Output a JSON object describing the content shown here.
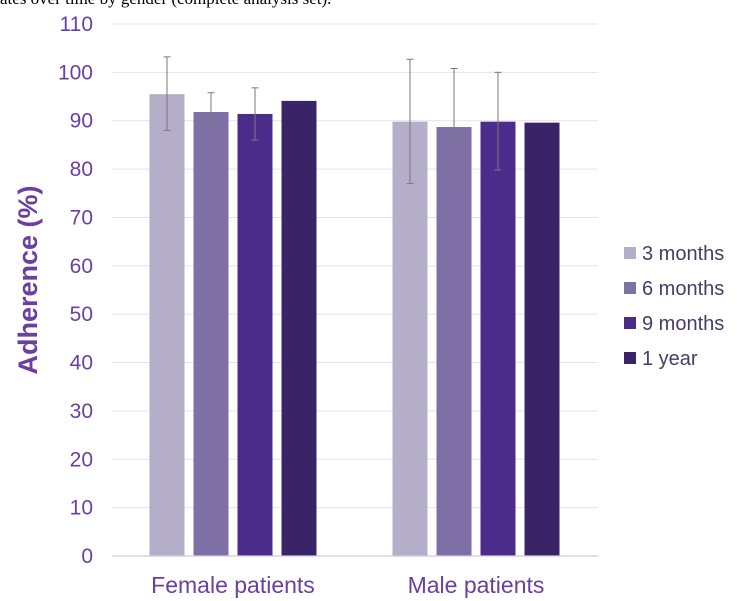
{
  "caption": "ates over time by gender (complete analysis set).",
  "colors": {
    "axis_text": "#6b3fa0",
    "gridline": "#e4e1ee",
    "error_bar": "#7a7a7a",
    "series": [
      "#b4aec9",
      "#7e70a7",
      "#4c2c8a",
      "#3a2468"
    ]
  },
  "chart_data": {
    "type": "bar",
    "title": "",
    "xlabel": "",
    "ylabel": "Adherence (%)",
    "ylim": [
      0,
      110
    ],
    "yticks": [
      0,
      10,
      20,
      30,
      40,
      50,
      60,
      70,
      80,
      90,
      100,
      110
    ],
    "grid": true,
    "legend_position": "right",
    "categories": [
      "Female patients",
      "Male patients"
    ],
    "series": [
      {
        "name": "3 months",
        "values": [
          95.5,
          89.8
        ],
        "err_low": [
          88.0,
          77.0
        ],
        "err_high": [
          103.2,
          102.7
        ]
      },
      {
        "name": "6 months",
        "values": [
          91.8,
          88.7
        ],
        "err_low": [
          87.8,
          76.7
        ],
        "err_high": [
          95.8,
          100.8
        ]
      },
      {
        "name": "9 months",
        "values": [
          91.4,
          89.8
        ],
        "err_low": [
          86.0,
          79.8
        ],
        "err_high": [
          96.8,
          100.0
        ]
      },
      {
        "name": "1 year",
        "values": [
          94.1,
          89.6
        ],
        "err_low": null,
        "err_high": null
      }
    ]
  }
}
